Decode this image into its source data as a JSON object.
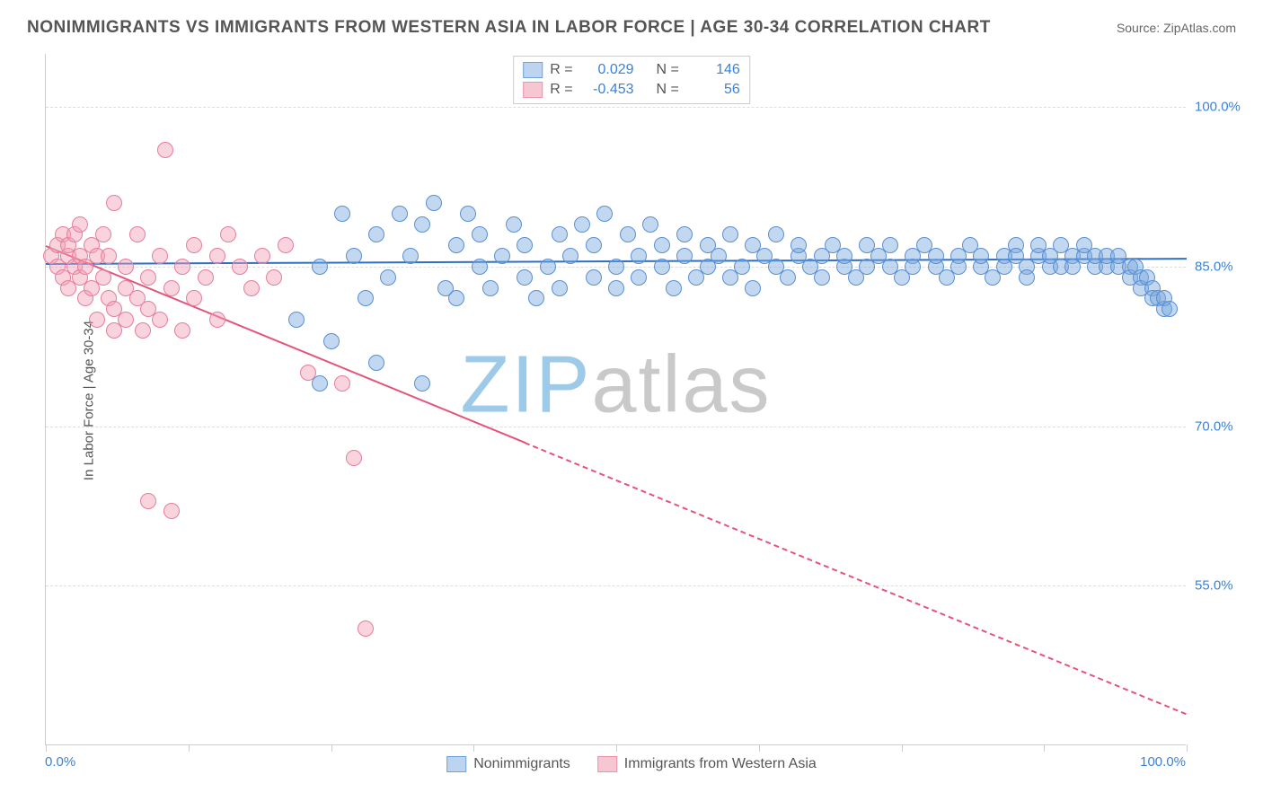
{
  "title": "NONIMMIGRANTS VS IMMIGRANTS FROM WESTERN ASIA IN LABOR FORCE | AGE 30-34 CORRELATION CHART",
  "source": "Source: ZipAtlas.com",
  "y_axis_title": "In Labor Force | Age 30-34",
  "watermark_a": "ZIP",
  "watermark_b": "atlas",
  "watermark_color_a": "#9ecae9",
  "watermark_color_b": "#c9c9c9",
  "chart": {
    "type": "scatter-correlation",
    "xlim": [
      0,
      100
    ],
    "ylim": [
      40,
      105
    ],
    "y_ticks": [
      {
        "v": 55.0,
        "label": "55.0%"
      },
      {
        "v": 70.0,
        "label": "70.0%"
      },
      {
        "v": 85.0,
        "label": "85.0%"
      },
      {
        "v": 100.0,
        "label": "100.0%"
      }
    ],
    "x_tick_positions": [
      0,
      12.5,
      25,
      37.5,
      50,
      62.5,
      75,
      87.5,
      100
    ],
    "x_min_label": "0.0%",
    "x_max_label": "100.0%",
    "axis_label_color": "#3b82d6",
    "grid_color": "#dddddd",
    "point_radius": 9,
    "background_color": "#ffffff"
  },
  "series": [
    {
      "name": "Nonimmigrants",
      "legend_label": "Nonimmigrants",
      "fill": "rgba(120,169,223,0.45)",
      "stroke": "#5b8fd0",
      "swatch_fill": "#bcd4ef",
      "swatch_stroke": "#6fa3db",
      "R": "0.029",
      "N": "146",
      "trend": {
        "x1": 0,
        "y1": 85.3,
        "x2": 100,
        "y2": 85.8,
        "color": "#2f6fc5",
        "dashed": false
      },
      "points": [
        [
          22,
          80
        ],
        [
          24,
          85
        ],
        [
          25,
          78
        ],
        [
          26,
          90
        ],
        [
          27,
          86
        ],
        [
          28,
          82
        ],
        [
          29,
          88
        ],
        [
          30,
          84
        ],
        [
          31,
          90
        ],
        [
          32,
          86
        ],
        [
          33,
          89
        ],
        [
          34,
          91
        ],
        [
          35,
          83
        ],
        [
          36,
          87
        ],
        [
          36,
          82
        ],
        [
          37,
          90
        ],
        [
          38,
          85
        ],
        [
          38,
          88
        ],
        [
          39,
          83
        ],
        [
          40,
          86
        ],
        [
          41,
          89
        ],
        [
          42,
          84
        ],
        [
          42,
          87
        ],
        [
          43,
          82
        ],
        [
          44,
          85
        ],
        [
          45,
          88
        ],
        [
          45,
          83
        ],
        [
          46,
          86
        ],
        [
          47,
          89
        ],
        [
          48,
          84
        ],
        [
          48,
          87
        ],
        [
          49,
          90
        ],
        [
          50,
          85
        ],
        [
          50,
          83
        ],
        [
          51,
          88
        ],
        [
          52,
          86
        ],
        [
          52,
          84
        ],
        [
          53,
          89
        ],
        [
          54,
          85
        ],
        [
          54,
          87
        ],
        [
          55,
          83
        ],
        [
          56,
          86
        ],
        [
          56,
          88
        ],
        [
          57,
          84
        ],
        [
          58,
          87
        ],
        [
          58,
          85
        ],
        [
          59,
          86
        ],
        [
          60,
          88
        ],
        [
          60,
          84
        ],
        [
          61,
          85
        ],
        [
          62,
          87
        ],
        [
          62,
          83
        ],
        [
          63,
          86
        ],
        [
          64,
          85
        ],
        [
          64,
          88
        ],
        [
          65,
          84
        ],
        [
          66,
          86
        ],
        [
          66,
          87
        ],
        [
          67,
          85
        ],
        [
          68,
          86
        ],
        [
          68,
          84
        ],
        [
          69,
          87
        ],
        [
          70,
          85
        ],
        [
          70,
          86
        ],
        [
          71,
          84
        ],
        [
          72,
          87
        ],
        [
          72,
          85
        ],
        [
          73,
          86
        ],
        [
          74,
          85
        ],
        [
          74,
          87
        ],
        [
          75,
          84
        ],
        [
          76,
          86
        ],
        [
          76,
          85
        ],
        [
          77,
          87
        ],
        [
          78,
          85
        ],
        [
          78,
          86
        ],
        [
          79,
          84
        ],
        [
          80,
          86
        ],
        [
          80,
          85
        ],
        [
          81,
          87
        ],
        [
          82,
          85
        ],
        [
          82,
          86
        ],
        [
          83,
          84
        ],
        [
          84,
          86
        ],
        [
          84,
          85
        ],
        [
          85,
          87
        ],
        [
          85,
          86
        ],
        [
          86,
          85
        ],
        [
          86,
          84
        ],
        [
          87,
          86
        ],
        [
          87,
          87
        ],
        [
          88,
          85
        ],
        [
          88,
          86
        ],
        [
          89,
          85
        ],
        [
          89,
          87
        ],
        [
          90,
          86
        ],
        [
          90,
          85
        ],
        [
          91,
          86
        ],
        [
          91,
          87
        ],
        [
          92,
          85
        ],
        [
          92,
          86
        ],
        [
          93,
          85
        ],
        [
          93,
          86
        ],
        [
          94,
          85
        ],
        [
          94,
          86
        ],
        [
          95,
          85
        ],
        [
          95,
          84
        ],
        [
          95.5,
          85
        ],
        [
          96,
          84
        ],
        [
          96,
          83
        ],
        [
          96.5,
          84
        ],
        [
          97,
          83
        ],
        [
          97,
          82
        ],
        [
          97.5,
          82
        ],
        [
          98,
          81
        ],
        [
          98,
          82
        ],
        [
          98.5,
          81
        ],
        [
          24,
          74
        ],
        [
          29,
          76
        ],
        [
          33,
          74
        ]
      ]
    },
    {
      "name": "Immigrants from Western Asia",
      "legend_label": "Immigrants from Western Asia",
      "fill": "rgba(242,157,180,0.45)",
      "stroke": "#e57f9b",
      "swatch_fill": "#f6c6d3",
      "swatch_stroke": "#ea94ac",
      "R": "-0.453",
      "N": "56",
      "trend": {
        "x1": 0,
        "y1": 87,
        "x2": 100,
        "y2": 43,
        "color": "#e6537a",
        "dashed_after_x": 42
      },
      "points": [
        [
          0.5,
          86
        ],
        [
          1,
          87
        ],
        [
          1,
          85
        ],
        [
          1.5,
          88
        ],
        [
          1.5,
          84
        ],
        [
          2,
          86
        ],
        [
          2,
          87
        ],
        [
          2,
          83
        ],
        [
          2.5,
          85
        ],
        [
          2.5,
          88
        ],
        [
          3,
          84
        ],
        [
          3,
          86
        ],
        [
          3,
          89
        ],
        [
          3.5,
          82
        ],
        [
          3.5,
          85
        ],
        [
          4,
          87
        ],
        [
          4,
          83
        ],
        [
          4.5,
          86
        ],
        [
          4.5,
          80
        ],
        [
          5,
          88
        ],
        [
          5,
          84
        ],
        [
          5.5,
          82
        ],
        [
          5.5,
          86
        ],
        [
          6,
          81
        ],
        [
          6,
          91
        ],
        [
          6,
          79
        ],
        [
          7,
          85
        ],
        [
          7,
          83
        ],
        [
          7,
          80
        ],
        [
          8,
          82
        ],
        [
          8,
          88
        ],
        [
          8.5,
          79
        ],
        [
          9,
          84
        ],
        [
          9,
          81
        ],
        [
          10,
          86
        ],
        [
          10,
          80
        ],
        [
          10.5,
          96
        ],
        [
          11,
          83
        ],
        [
          12,
          85
        ],
        [
          12,
          79
        ],
        [
          13,
          82
        ],
        [
          13,
          87
        ],
        [
          14,
          84
        ],
        [
          15,
          86
        ],
        [
          15,
          80
        ],
        [
          16,
          88
        ],
        [
          17,
          85
        ],
        [
          18,
          83
        ],
        [
          19,
          86
        ],
        [
          20,
          84
        ],
        [
          21,
          87
        ],
        [
          9,
          63
        ],
        [
          11,
          62
        ],
        [
          23,
          75
        ],
        [
          26,
          74
        ],
        [
          27,
          67
        ],
        [
          28,
          51
        ]
      ]
    }
  ],
  "stats_box": {
    "r_label": "R =",
    "n_label": "N =",
    "value_color": "#3b82d6"
  },
  "legend": {
    "position": "bottom-center"
  }
}
